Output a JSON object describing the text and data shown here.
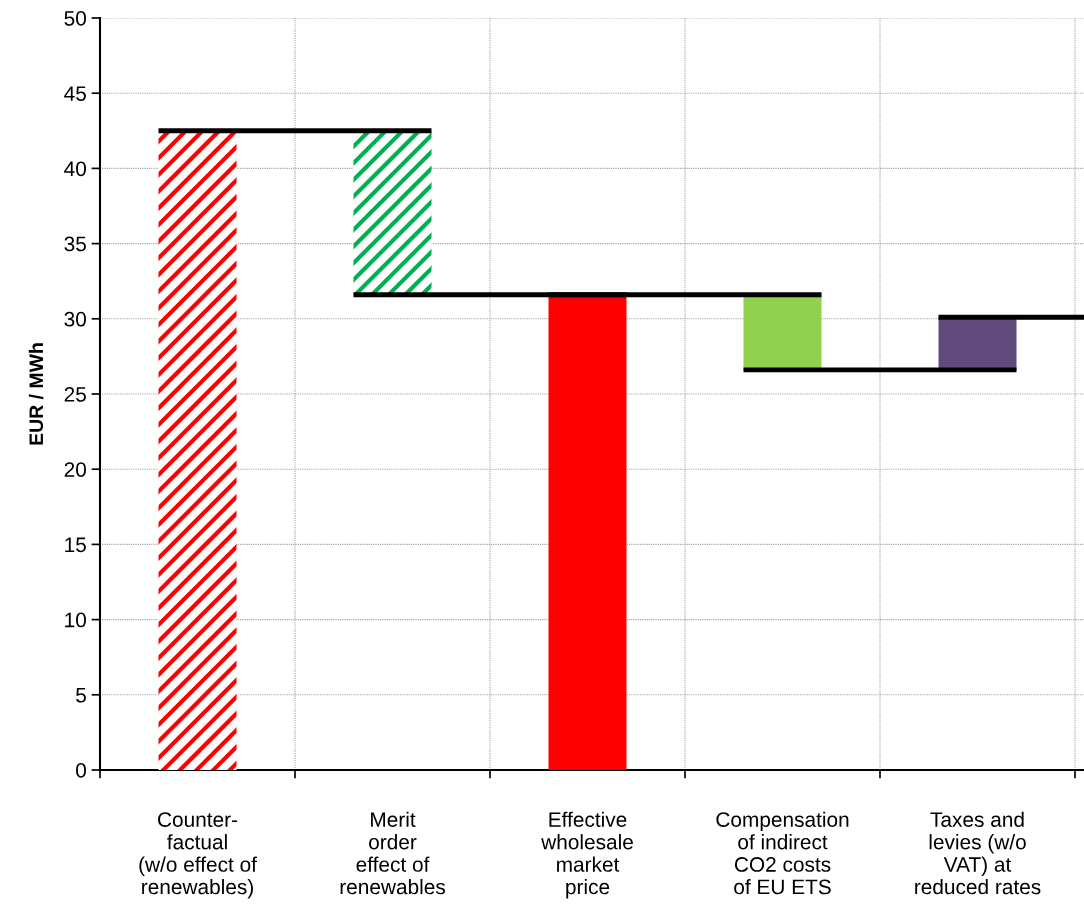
{
  "chart_data": {
    "type": "bar",
    "ylabel": "EUR / MWh",
    "categories": [
      "Counter-\nfactual\n(w/o effect of\nrenewables)",
      "Merit\norder\neffect of\nrenewables",
      "Effective\nwholesale\nmarket\nprice",
      "Compensation\nof indirect\nCO2 costs\nof EU ETS",
      "Taxes and\nlevies (w/o\nVAT) at\nreduced rates"
    ],
    "series": [
      {
        "colors": [
          "#ff0000",
          "#00b050",
          null,
          null,
          null
        ],
        "base": [
          0,
          31.6,
          null,
          null,
          null
        ],
        "values": [
          42.5,
          10.9,
          null,
          null,
          null
        ]
      },
      {
        "colors": [
          null,
          null,
          "#ff0000",
          "#92d050",
          "#604a7b"
        ],
        "base": [
          null,
          null,
          0,
          26.6,
          26.6
        ],
        "values": [
          null,
          null,
          31.6,
          5.0,
          3.5
        ]
      }
    ],
    "ylim": [
      0,
      50
    ],
    "yticks": [
      0,
      5,
      10,
      15,
      20,
      25,
      30,
      35,
      40,
      45,
      50
    ],
    "grid": true
  }
}
